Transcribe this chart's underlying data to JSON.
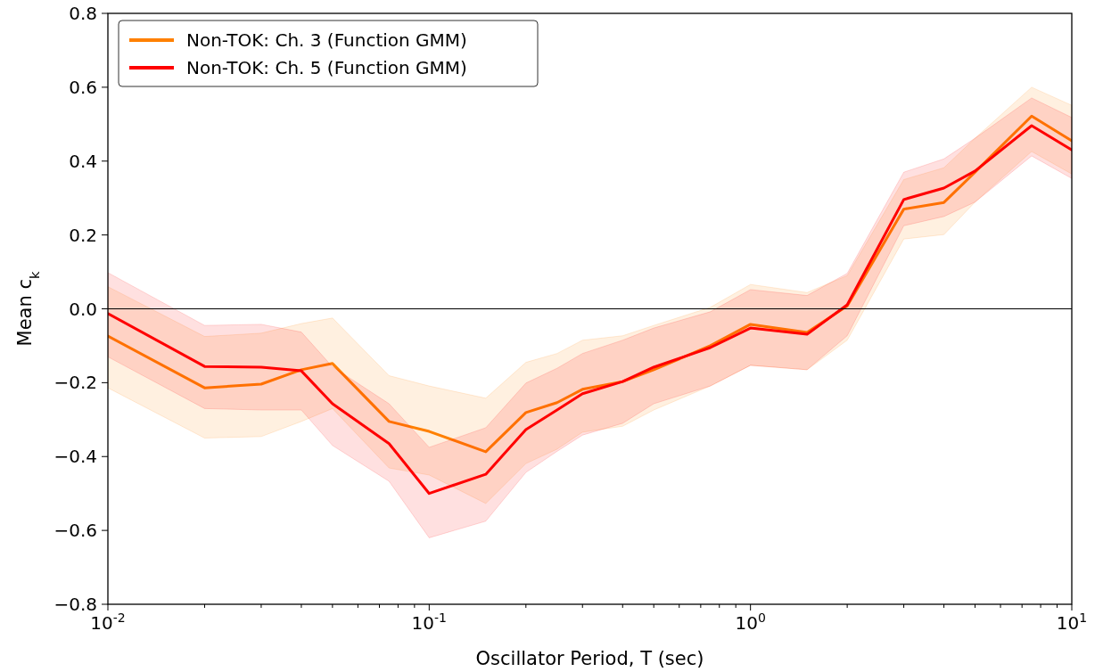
{
  "chart_data": {
    "type": "line",
    "xlabel": "Oscillator Period, T (sec)",
    "ylabel": "Mean c$_{k}$",
    "log": "x",
    "x": [
      0.01,
      0.02,
      0.03,
      0.04,
      0.05,
      0.075,
      0.1,
      0.15,
      0.2,
      0.25,
      0.3,
      0.4,
      0.5,
      0.75,
      1,
      1.5,
      2,
      3,
      4,
      5,
      7.5,
      10
    ],
    "series": [
      {
        "name": "Non-TOK: Ch. 3 (Function GMM)",
        "color": "#ff8000",
        "values": [
          -0.074,
          -0.214,
          -0.204,
          -0.165,
          -0.148,
          -0.305,
          -0.332,
          -0.387,
          -0.281,
          -0.254,
          -0.218,
          -0.197,
          -0.165,
          -0.1,
          -0.042,
          -0.064,
          0.008,
          0.27,
          0.288,
          0.37,
          0.522,
          0.455
        ],
        "lower": [
          -0.214,
          -0.35,
          -0.346,
          -0.305,
          -0.27,
          -0.431,
          -0.45,
          -0.527,
          -0.419,
          -0.38,
          -0.334,
          -0.318,
          -0.274,
          -0.209,
          -0.153,
          -0.165,
          -0.085,
          0.189,
          0.201,
          0.289,
          0.426,
          0.365
        ],
        "upper": [
          0.06,
          -0.075,
          -0.066,
          -0.04,
          -0.025,
          -0.181,
          -0.209,
          -0.242,
          -0.145,
          -0.121,
          -0.085,
          -0.073,
          -0.045,
          0.004,
          0.066,
          0.044,
          0.09,
          0.35,
          0.382,
          0.462,
          0.6,
          0.551
        ]
      },
      {
        "name": "Non-TOK: Ch. 5 (Function GMM)",
        "color": "#ff0000",
        "values": [
          -0.013,
          -0.156,
          -0.158,
          -0.168,
          -0.257,
          -0.365,
          -0.5,
          -0.448,
          -0.327,
          -0.274,
          -0.23,
          -0.197,
          -0.158,
          -0.105,
          -0.052,
          -0.069,
          0.011,
          0.296,
          0.327,
          0.373,
          0.496,
          0.43
        ],
        "lower": [
          -0.13,
          -0.27,
          -0.274,
          -0.274,
          -0.37,
          -0.467,
          -0.62,
          -0.575,
          -0.443,
          -0.386,
          -0.342,
          -0.31,
          -0.257,
          -0.209,
          -0.153,
          -0.165,
          -0.073,
          0.225,
          0.25,
          0.289,
          0.414,
          0.353
        ],
        "upper": [
          0.098,
          -0.045,
          -0.042,
          -0.063,
          -0.157,
          -0.257,
          -0.375,
          -0.322,
          -0.201,
          -0.161,
          -0.121,
          -0.085,
          -0.052,
          -0.008,
          0.052,
          0.036,
          0.096,
          0.37,
          0.406,
          0.462,
          0.571,
          0.518
        ]
      }
    ],
    "xlim": [
      0.01,
      10
    ],
    "xticks": [
      {
        "value": 0.01,
        "label": "10$^{-2}$"
      },
      {
        "value": 0.02,
        "label": null
      },
      {
        "value": 0.03,
        "label": null
      },
      {
        "value": 0.04,
        "label": null
      },
      {
        "value": 0.05,
        "label": null
      },
      {
        "value": 0.06,
        "label": null
      },
      {
        "value": 0.07,
        "label": null
      },
      {
        "value": 0.08,
        "label": null
      },
      {
        "value": 0.09,
        "label": null
      },
      {
        "value": 0.1,
        "label": "10$^{-1}$"
      },
      {
        "value": 0.2,
        "label": null
      },
      {
        "value": 0.3,
        "label": null
      },
      {
        "value": 0.4,
        "label": null
      },
      {
        "value": 0.5,
        "label": null
      },
      {
        "value": 0.6,
        "label": null
      },
      {
        "value": 0.7,
        "label": null
      },
      {
        "value": 0.8,
        "label": null
      },
      {
        "value": 0.9,
        "label": null
      },
      {
        "value": 1,
        "label": "10$^{0}$"
      },
      {
        "value": 2,
        "label": null
      },
      {
        "value": 3,
        "label": null
      },
      {
        "value": 4,
        "label": null
      },
      {
        "value": 5,
        "label": null
      },
      {
        "value": 6,
        "label": null
      },
      {
        "value": 7,
        "label": null
      },
      {
        "value": 8,
        "label": null
      },
      {
        "value": 9,
        "label": null
      },
      {
        "value": 10,
        "label": "10$^{1}$"
      }
    ],
    "ylim": [
      -0.8,
      0.8
    ],
    "yticks": [
      {
        "value": -0.8,
        "label": "−0.8"
      },
      {
        "value": -0.6,
        "label": "−0.6"
      },
      {
        "value": -0.4,
        "label": "−0.4"
      },
      {
        "value": -0.2,
        "label": "−0.2"
      },
      {
        "value": 0,
        "label": "0.0"
      },
      {
        "value": 0.2,
        "label": "0.2"
      },
      {
        "value": 0.4,
        "label": "0.4"
      },
      {
        "value": 0.6,
        "label": "0.6"
      },
      {
        "value": 0.8,
        "label": "0.8"
      }
    ],
    "ref_lines": [
      {
        "axis": "y",
        "value": 0,
        "color": "#000000"
      }
    ],
    "grid": false,
    "legend": "top left",
    "line_style": "solid",
    "marker": "none"
  }
}
